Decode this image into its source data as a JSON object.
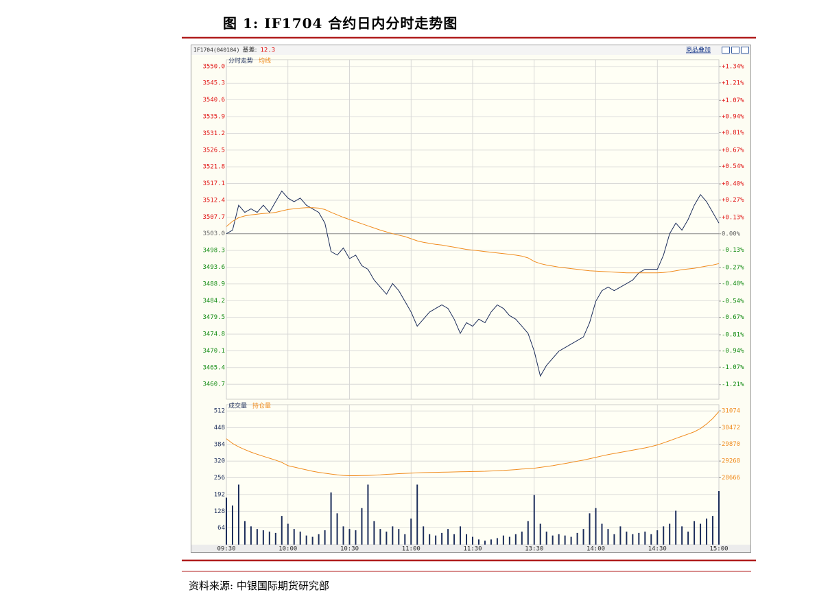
{
  "title": "图 1: IF1704 合约日内分时走势图",
  "source": "资料来源: 中银国际期货研究部",
  "chart_data": [
    {
      "type": "line",
      "header": {
        "code": "IF1704(040104)",
        "basis_label": "基差:",
        "basis": 12.3
      },
      "overlay_button": "商品叠加",
      "x": [
        0,
        3,
        6,
        9,
        12,
        15,
        18,
        21,
        24,
        27,
        30,
        33,
        36,
        39,
        42,
        45,
        48,
        51,
        54,
        57,
        60,
        63,
        66,
        69,
        72,
        75,
        78,
        81,
        84,
        87,
        90,
        93,
        96,
        99,
        102,
        105,
        108,
        111,
        114,
        117,
        120,
        123,
        126,
        129,
        132,
        135,
        138,
        141,
        144,
        147,
        150,
        153,
        156,
        159,
        162,
        165,
        168,
        171,
        174,
        177,
        180,
        183,
        186,
        189,
        192,
        195,
        198,
        201,
        204,
        207,
        210,
        213,
        216,
        219,
        222,
        225,
        228,
        231,
        234,
        237,
        240
      ],
      "xlim": [
        0,
        240
      ],
      "series": [
        {
          "name": "分时走势",
          "color": "#1c2d5a",
          "values": [
            3503,
            3504,
            3511,
            3509,
            3510,
            3509,
            3511,
            3509,
            3512,
            3515,
            3513,
            3512,
            3513,
            3511,
            3510,
            3509,
            3506,
            3498,
            3497,
            3499,
            3496,
            3497,
            3494,
            3493,
            3490,
            3488,
            3486,
            3489,
            3487,
            3484,
            3481,
            3477,
            3479,
            3481,
            3482,
            3483,
            3482,
            3479,
            3475,
            3478,
            3477,
            3479,
            3478,
            3481,
            3483,
            3482,
            3480,
            3479,
            3477,
            3475,
            3470,
            3463,
            3466,
            3468,
            3470,
            3471,
            3472,
            3473,
            3474,
            3478,
            3484,
            3487,
            3488,
            3487,
            3488,
            3489,
            3490,
            3492,
            3493,
            3493,
            3493,
            3497,
            3503,
            3506,
            3504,
            3507,
            3511,
            3514,
            3512,
            3509,
            3506
          ]
        },
        {
          "name": "均线",
          "color": "#f08c1e",
          "values": [
            3505,
            3506.5,
            3507.5,
            3508,
            3508.3,
            3508.5,
            3508.7,
            3508.8,
            3509,
            3509.4,
            3509.8,
            3510,
            3510.2,
            3510.3,
            3510.3,
            3510.2,
            3509.8,
            3509,
            3508.3,
            3507.6,
            3507,
            3506.4,
            3505.8,
            3505.2,
            3504.6,
            3504,
            3503.5,
            3503,
            3502.6,
            3502.2,
            3501.6,
            3501,
            3500.6,
            3500.3,
            3500,
            3499.8,
            3499.5,
            3499.2,
            3498.9,
            3498.6,
            3498.4,
            3498.2,
            3498,
            3497.8,
            3497.6,
            3497.4,
            3497.2,
            3497,
            3496.7,
            3496.2,
            3495.2,
            3494.6,
            3494.2,
            3493.9,
            3493.6,
            3493.4,
            3493.2,
            3493,
            3492.8,
            3492.6,
            3492.5,
            3492.4,
            3492.3,
            3492.2,
            3492.1,
            3492,
            3492,
            3492,
            3492,
            3492,
            3492,
            3492.1,
            3492.3,
            3492.6,
            3492.9,
            3493.1,
            3493.3,
            3493.6,
            3493.9,
            3494.2,
            3494.6
          ]
        }
      ],
      "ylim": [
        3456.5,
        3551.9
      ],
      "yticks": [
        {
          "value": 3550,
          "label": "3550.0"
        },
        3545.3,
        3540.6,
        3535.9,
        3531.2,
        3526.5,
        3521.8,
        3517.1,
        3512.4,
        3507.7,
        {
          "value": 3503,
          "label": "3503.0"
        },
        3498.3,
        3493.6,
        3488.9,
        3484.2,
        3479.5,
        3474.8,
        3470.1,
        3465.4,
        3460.7
      ],
      "y2lim": [
        -1.327,
        1.396
      ],
      "y2ticks": [
        {
          "value": 1.34,
          "label": "+1.34%"
        },
        {
          "value": 1.21,
          "label": "+1.21%"
        },
        {
          "value": 1.07,
          "label": "+1.07%"
        },
        {
          "value": 0.94,
          "label": "+0.94%"
        },
        {
          "value": 0.81,
          "label": "+0.81%"
        },
        {
          "value": 0.67,
          "label": "+0.67%"
        },
        {
          "value": 0.54,
          "label": "+0.54%"
        },
        {
          "value": 0.4,
          "label": "+0.40%"
        },
        {
          "value": 0.27,
          "label": "+0.27%"
        },
        {
          "value": 0.13,
          "label": "+0.13%"
        },
        {
          "value": 0,
          "label": "0.00%"
        },
        {
          "value": -0.13,
          "label": "-0.13%"
        },
        {
          "value": -0.27,
          "label": "-0.27%"
        },
        {
          "value": -0.4,
          "label": "-0.40%"
        },
        {
          "value": -0.54,
          "label": "-0.54%"
        },
        {
          "value": -0.67,
          "label": "-0.67%"
        },
        {
          "value": -0.81,
          "label": "-0.81%"
        },
        {
          "value": -0.94,
          "label": "-0.94%"
        },
        {
          "value": -1.07,
          "label": "-1.07%"
        },
        {
          "value": -1.21,
          "label": "-1.21%"
        }
      ],
      "grid": true
    },
    {
      "type": "combo",
      "x": [
        0,
        3,
        6,
        9,
        12,
        15,
        18,
        21,
        24,
        27,
        30,
        33,
        36,
        39,
        42,
        45,
        48,
        51,
        54,
        57,
        60,
        63,
        66,
        69,
        72,
        75,
        78,
        81,
        84,
        87,
        90,
        93,
        96,
        99,
        102,
        105,
        108,
        111,
        114,
        117,
        120,
        123,
        126,
        129,
        132,
        135,
        138,
        141,
        144,
        147,
        150,
        153,
        156,
        159,
        162,
        165,
        168,
        171,
        174,
        177,
        180,
        183,
        186,
        189,
        192,
        195,
        198,
        201,
        204,
        207,
        210,
        213,
        216,
        219,
        222,
        225,
        228,
        231,
        234,
        237,
        240
      ],
      "xlim": [
        0,
        240
      ],
      "xticks": [
        {
          "value": 0,
          "label": "09:30"
        },
        {
          "value": 30,
          "label": "10:00"
        },
        {
          "value": 60,
          "label": "10:30"
        },
        {
          "value": 90,
          "label": "11:00"
        },
        {
          "value": 120,
          "label": "11:30"
        },
        {
          "value": 150,
          "label": "13:30"
        },
        {
          "value": 180,
          "label": "14:00"
        },
        {
          "value": 210,
          "label": "14:30"
        },
        {
          "value": 240,
          "label": "15:00"
        }
      ],
      "series": [
        {
          "name": "成交量",
          "type": "bar",
          "color": "#1c2d5a",
          "values": [
            180,
            150,
            230,
            90,
            70,
            60,
            55,
            50,
            45,
            110,
            80,
            60,
            50,
            35,
            30,
            40,
            55,
            200,
            120,
            70,
            60,
            55,
            140,
            230,
            90,
            60,
            50,
            70,
            60,
            40,
            100,
            230,
            70,
            40,
            35,
            45,
            60,
            40,
            70,
            40,
            30,
            20,
            15,
            20,
            25,
            35,
            30,
            40,
            50,
            90,
            190,
            80,
            50,
            35,
            40,
            35,
            30,
            45,
            60,
            120,
            140,
            80,
            60,
            40,
            70,
            50,
            40,
            45,
            50,
            40,
            55,
            70,
            80,
            130,
            70,
            50,
            90,
            80,
            100,
            110,
            205
          ]
        },
        {
          "name": "持仓量",
          "type": "line",
          "axis": "y2",
          "color": "#f08c1e",
          "values": [
            30072,
            29900,
            29780,
            29680,
            29590,
            29510,
            29440,
            29370,
            29300,
            29220,
            29100,
            29050,
            29000,
            28950,
            28900,
            28860,
            28830,
            28800,
            28770,
            28750,
            28740,
            28740,
            28745,
            28750,
            28760,
            28770,
            28790,
            28800,
            28815,
            28825,
            28835,
            28840,
            28850,
            28855,
            28860,
            28865,
            28870,
            28875,
            28880,
            28885,
            28890,
            28895,
            28900,
            28910,
            28920,
            28930,
            28945,
            28960,
            28980,
            28995,
            29010,
            29040,
            29070,
            29100,
            29140,
            29180,
            29220,
            29260,
            29300,
            29350,
            29400,
            29450,
            29500,
            29540,
            29580,
            29620,
            29660,
            29700,
            29740,
            29790,
            29850,
            29920,
            30000,
            30080,
            30160,
            30240,
            30320,
            30440,
            30600,
            30800,
            31050
          ]
        }
      ],
      "ylim": [
        0,
        536
      ],
      "yticks": [
        512,
        448,
        384,
        320,
        256,
        192,
        128,
        64
      ],
      "y2lim": [
        26258,
        31296
      ],
      "y2ticks": [
        31074,
        30472,
        29870,
        29268,
        28666
      ],
      "grid": true
    }
  ]
}
